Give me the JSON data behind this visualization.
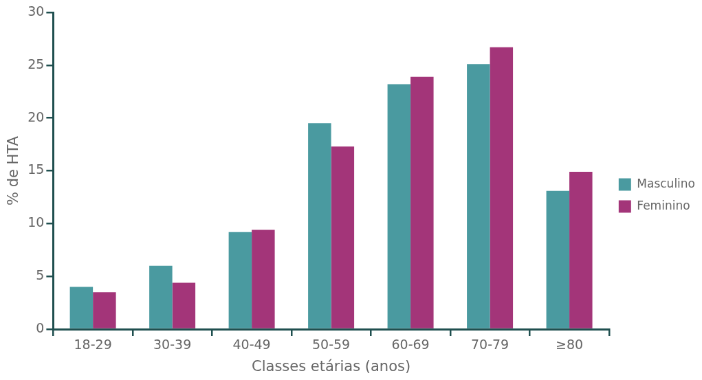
{
  "chart_data": {
    "type": "bar",
    "xlabel": "Classes etárias (anos)",
    "ylabel": "% de HTA",
    "categories": [
      "18-29",
      "30-39",
      "40-49",
      "50-59",
      "60-69",
      "70-79",
      "≥80"
    ],
    "series": [
      {
        "name": "Masculino",
        "color": "#4a9aa0",
        "values": [
          4.0,
          6.0,
          9.2,
          19.5,
          23.2,
          25.1,
          13.1
        ]
      },
      {
        "name": "Feminino",
        "color": "#a33579",
        "values": [
          3.5,
          4.4,
          9.4,
          17.3,
          23.9,
          26.7,
          14.9
        ]
      }
    ],
    "ylim": [
      0,
      30
    ],
    "yticks": [
      0,
      5,
      10,
      15,
      20,
      25,
      30
    ],
    "grid": false,
    "legend": "right"
  }
}
